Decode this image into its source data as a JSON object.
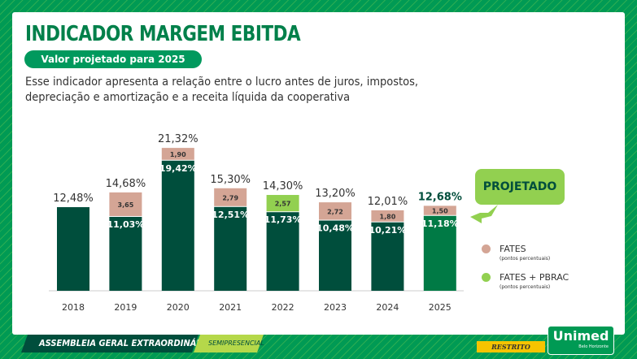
{
  "title": "INDICADOR MARGEM EBITDA",
  "subtitle_pill": "Valor projetado para 2025",
  "description": "Esse indicador apresenta a relação entre o lucro antes de juros, impostos, depreciação e amortização e a receita líquida da cooperativa",
  "projected_callout": "PROJETADO",
  "legend": [
    {
      "label": "FATES",
      "sub": "(pontos percentuais)",
      "color": "#d4a595"
    },
    {
      "label": "FATES + PBRAC",
      "sub": "(pontos percentuais)",
      "color": "#92d050"
    }
  ],
  "footer": {
    "event": "ASSEMBLEIA GERAL EXTRAORDINÁRIA",
    "mode": "SEMIPRESENCIAL",
    "classification": "RESTRITO",
    "logo": "Unimed",
    "logo_sub": "Belo Horizonte"
  },
  "colors": {
    "base": "#004e3c",
    "projected": "#007a45",
    "fates": "#d4a595",
    "fates_pbrac": "#92d050"
  },
  "chart_data": {
    "type": "bar",
    "stacked": true,
    "categories": [
      "2018",
      "2019",
      "2020",
      "2021",
      "2022",
      "2023",
      "2024",
      "2025"
    ],
    "totals": [
      "12,48%",
      "14,68%",
      "21,32%",
      "15,30%",
      "14,30%",
      "13,20%",
      "12,01%",
      "12,68%"
    ],
    "total_values": [
      12.48,
      14.68,
      21.32,
      15.3,
      14.3,
      13.2,
      12.01,
      12.68
    ],
    "base_values": [
      12.48,
      11.03,
      19.42,
      12.51,
      11.73,
      10.48,
      10.21,
      11.18
    ],
    "base_labels": [
      "",
      "11,03%",
      "19,42%",
      "12,51%",
      "11,73%",
      "10,48%",
      "10,21%",
      "11,18%"
    ],
    "top_values": [
      0,
      3.65,
      1.9,
      2.79,
      2.57,
      2.72,
      1.8,
      1.5
    ],
    "top_labels": [
      "",
      "3,65",
      "1,90",
      "2,79",
      "2,57",
      "2,72",
      "1,80",
      "1,50"
    ],
    "top_series": [
      "",
      "FATES",
      "FATES",
      "FATES",
      "FATES + PBRAC",
      "FATES",
      "FATES",
      "FATES"
    ],
    "projected": [
      false,
      false,
      false,
      false,
      false,
      false,
      false,
      true
    ],
    "ylim": [
      0,
      22
    ]
  }
}
